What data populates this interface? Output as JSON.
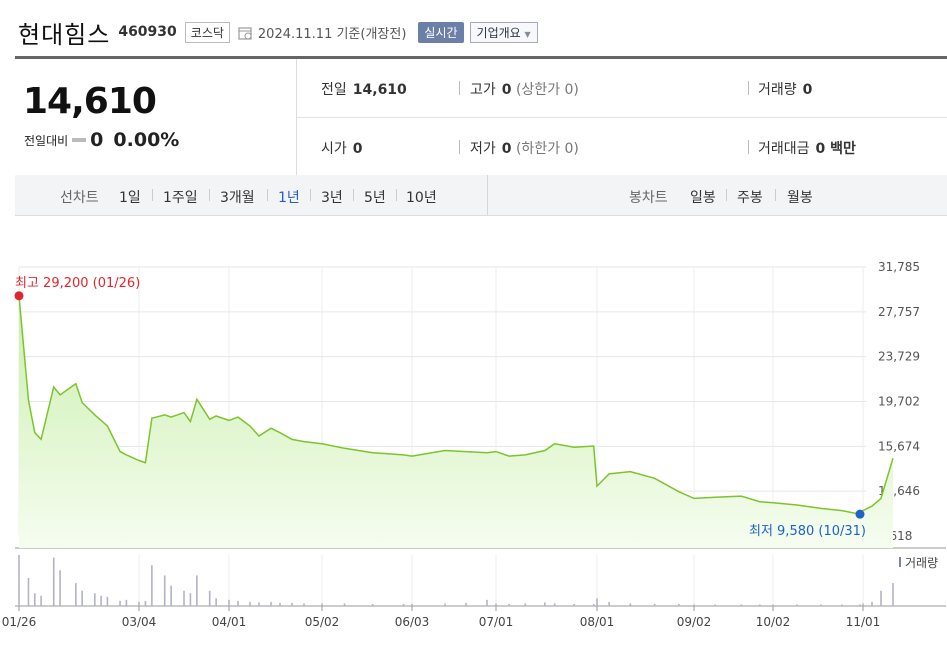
{
  "header": {
    "name": "현대힘스",
    "code": "460930",
    "market": "코스닥",
    "date": "2024.11.11  기준(개장전)",
    "realtime": "실시간",
    "company_info": "기업개요"
  },
  "summary": {
    "price": "14,610",
    "change_label": "전일대비",
    "change": "0",
    "change_pct": "0.00%",
    "prev_label": "전일",
    "prev": "14,610",
    "high_label": "고가",
    "high": "0",
    "upper_limit_text": "(상한가 0)",
    "volume_label": "거래량",
    "volume": "0",
    "open_label": "시가",
    "open": "0",
    "low_label": "저가",
    "low": "0",
    "lower_limit_text": "(하한가 0)",
    "amount_label": "거래대금",
    "amount": "0 백만"
  },
  "periods": {
    "line_label": "선차트",
    "line_tabs": [
      "1일",
      "1주일",
      "3개월",
      "1년",
      "3년",
      "5년",
      "10년"
    ],
    "active": "1년",
    "candle_label": "봉차트",
    "candle_tabs": [
      "일봉",
      "주봉",
      "월봉"
    ]
  },
  "chart_data": {
    "type": "area",
    "ylim": [
      7618,
      31785
    ],
    "yticks": [
      "31,785",
      "27,757",
      "23,729",
      "19,702",
      "15,674",
      "11,646",
      "7,618"
    ],
    "xticks": [
      "01/26",
      "03/04",
      "04/01",
      "05/02",
      "06/03",
      "07/01",
      "08/01",
      "09/02",
      "10/02",
      "11/01"
    ],
    "high_label": "최고 29,200 (01/26)",
    "low_label": "최저 9,580 (10/31)",
    "volume_legend": "거래량",
    "line_color": "#7dc42b",
    "high_color": "#e0262e",
    "low_color": "#1b63c9",
    "x": [
      "01/26",
      "01/29",
      "01/31",
      "02/02",
      "02/06",
      "02/08",
      "02/13",
      "02/15",
      "02/19",
      "02/21",
      "02/23",
      "02/27",
      "02/29",
      "03/04",
      "03/06",
      "03/08",
      "03/12",
      "03/14",
      "03/18",
      "03/20",
      "03/22",
      "03/26",
      "03/28",
      "04/01",
      "04/04",
      "04/08",
      "04/11",
      "04/15",
      "04/18",
      "04/22",
      "04/26",
      "05/02",
      "05/10",
      "05/20",
      "05/31",
      "06/03",
      "06/14",
      "06/21",
      "06/28",
      "07/01",
      "07/05",
      "07/10",
      "07/16",
      "07/19",
      "07/25",
      "07/31",
      "08/01",
      "08/05",
      "08/12",
      "08/20",
      "08/28",
      "09/02",
      "09/10",
      "09/20",
      "09/27",
      "10/02",
      "10/10",
      "10/18",
      "10/25",
      "10/31",
      "11/01",
      "11/04",
      "11/07",
      "11/11"
    ],
    "close": [
      29200,
      19800,
      16900,
      16300,
      21000,
      20300,
      21300,
      19600,
      18500,
      18000,
      17500,
      15200,
      14900,
      14400,
      14200,
      18200,
      18500,
      18300,
      18700,
      17900,
      19900,
      18100,
      18400,
      18000,
      18300,
      17500,
      16600,
      17300,
      16900,
      16300,
      16100,
      15900,
      15500,
      15100,
      14900,
      14800,
      15300,
      15200,
      15100,
      15200,
      14800,
      14900,
      15300,
      15900,
      15600,
      15700,
      12100,
      13200,
      13400,
      12800,
      11600,
      11000,
      11100,
      11200,
      10700,
      10600,
      10400,
      10100,
      9900,
      9580,
      9900,
      10300,
      11000,
      14610
    ],
    "volume": [
      1,
      0.55,
      0.25,
      0.2,
      0.95,
      0.7,
      0.45,
      0.3,
      0.25,
      0.2,
      0.18,
      0.1,
      0.12,
      0.08,
      0.1,
      0.8,
      0.6,
      0.4,
      0.3,
      0.25,
      0.6,
      0.3,
      0.15,
      0.12,
      0.1,
      0.08,
      0.07,
      0.08,
      0.06,
      0.06,
      0.05,
      0.05,
      0.05,
      0.04,
      0.04,
      0.04,
      0.05,
      0.06,
      0.12,
      0.05,
      0.04,
      0.05,
      0.07,
      0.05,
      0.04,
      0.04,
      0.15,
      0.08,
      0.05,
      0.04,
      0.04,
      0.03,
      0.03,
      0.03,
      0.03,
      0.03,
      0.03,
      0.03,
      0.03,
      0.03,
      0.05,
      0.08,
      0.3,
      0.45
    ]
  }
}
